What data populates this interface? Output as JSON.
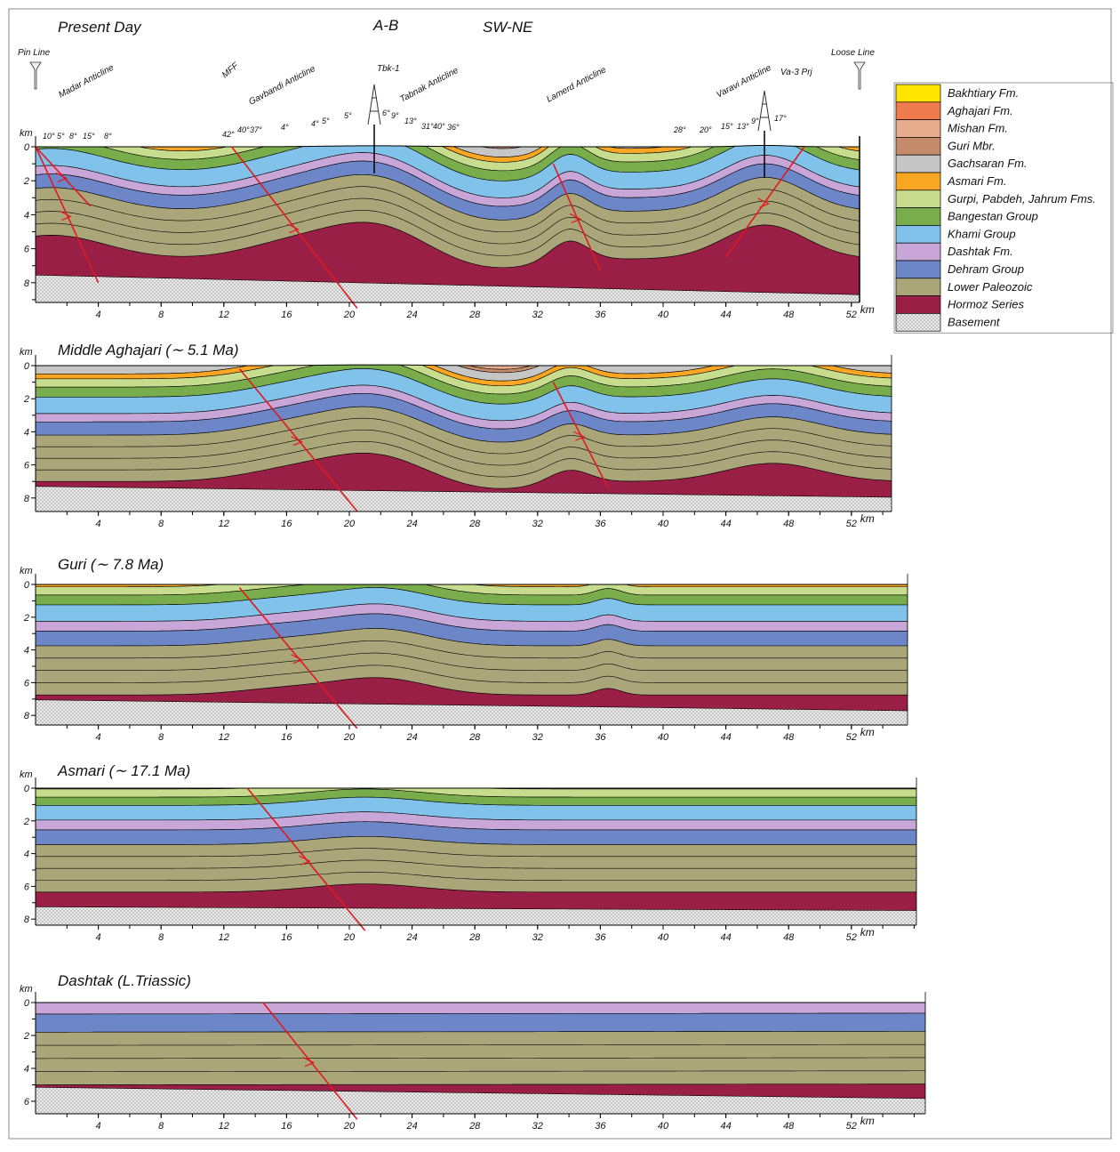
{
  "figure": {
    "section": "A-B",
    "direction": "SW-NE"
  },
  "panels": [
    {
      "title": "Present Day",
      "y_unit": "km",
      "x_unit": "km",
      "yticks": [
        0,
        2,
        4,
        6,
        8
      ],
      "xticks": [
        4,
        8,
        12,
        16,
        20,
        24,
        28,
        32,
        36,
        40,
        44,
        48,
        52
      ],
      "structures": [
        "Pin Line",
        "Madar Anticline",
        "MFF",
        "Gavbandi Anticline",
        "Tbk-1",
        "Tabnak Anticline",
        "Lamerd Anticline",
        "Varavi Anticline",
        "Va-3 Prj",
        "Loose Line"
      ],
      "dips": [
        "10°",
        "5°",
        "8°",
        "15°",
        "8°",
        "42°",
        "40°",
        "37°",
        "4°",
        "4°",
        "5°",
        "5°",
        "6°",
        "9°",
        "13°",
        "31°",
        "40°",
        "36°",
        "28°",
        "20°",
        "15°",
        "13°",
        "9°",
        "17°"
      ]
    },
    {
      "title": "Middle Aghajari (∼ 5.1 Ma)",
      "y_unit": "km",
      "x_unit": "km",
      "yticks": [
        0,
        2,
        4,
        6,
        8
      ],
      "xticks": [
        4,
        8,
        12,
        16,
        20,
        24,
        28,
        32,
        36,
        40,
        44,
        48,
        52
      ]
    },
    {
      "title": "Guri (∼ 7.8 Ma)",
      "y_unit": "km",
      "x_unit": "km",
      "yticks": [
        0,
        2,
        4,
        6,
        8
      ],
      "xticks": [
        4,
        8,
        12,
        16,
        20,
        24,
        28,
        32,
        36,
        40,
        44,
        48,
        52
      ]
    },
    {
      "title": "Asmari (∼ 17.1 Ma)",
      "y_unit": "km",
      "x_unit": "km",
      "yticks": [
        0,
        2,
        4,
        6,
        8
      ],
      "xticks": [
        4,
        8,
        12,
        16,
        20,
        24,
        28,
        32,
        36,
        40,
        44,
        48,
        52
      ]
    },
    {
      "title": "Dashtak (L.Triassic)",
      "y_unit": "km",
      "x_unit": "km",
      "yticks": [
        0,
        2,
        4,
        6
      ],
      "xticks": [
        4,
        8,
        12,
        16,
        20,
        24,
        28,
        32,
        36,
        40,
        44,
        48,
        52
      ]
    }
  ],
  "legend": [
    {
      "name": "Bakhtiary Fm.",
      "color": "#ffe400"
    },
    {
      "name": "Aghajari Fm.",
      "color": "#ef7b4e"
    },
    {
      "name": "Mishan Fm.",
      "color": "#e8ad8c"
    },
    {
      "name": "Guri Mbr.",
      "color": "#c58c6c"
    },
    {
      "name": "Gachsaran Fm.",
      "color": "#c6c6c6"
    },
    {
      "name": "Asmari Fm.",
      "color": "#f9a623"
    },
    {
      "name": "Gurpi, Pabdeh, Jahrum Fms.",
      "color": "#c8dc8e"
    },
    {
      "name": "Bangestan Group",
      "color": "#79ad4c"
    },
    {
      "name": "Khami Group",
      "color": "#80c2ea"
    },
    {
      "name": "Dashtak Fm.",
      "color": "#c8a6d7"
    },
    {
      "name": "Dehram Group",
      "color": "#6d86c8"
    },
    {
      "name": "Lower Paleozoic",
      "color": "#aaa679"
    },
    {
      "name": "Hormoz Series",
      "color": "#9a1f47"
    },
    {
      "name": "Basement",
      "color": "#e6e6e6"
    }
  ]
}
